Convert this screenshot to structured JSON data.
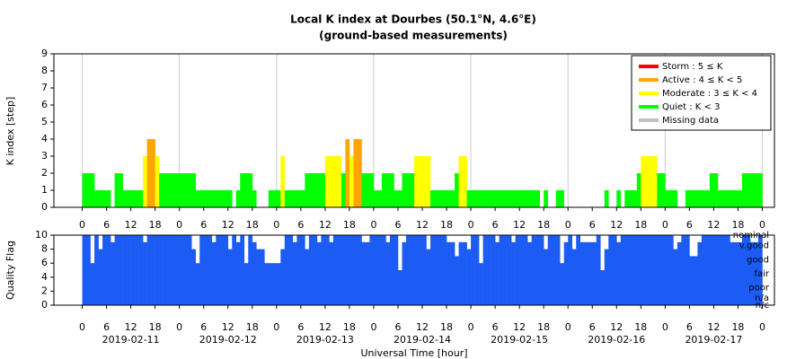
{
  "chart_data": [
    {
      "type": "bar",
      "title": "Local K index at Dourbes (50.1°N, 4.6°E)",
      "subtitle": "(ground-based measurements)",
      "y_label": "K index [step]",
      "xlim": [
        -7,
        171
      ],
      "ylim": [
        0,
        9
      ],
      "yticks": [
        0,
        1,
        2,
        3,
        4,
        5,
        6,
        7,
        8,
        9
      ],
      "xticks": [
        {
          "value": 0,
          "label": "0"
        },
        {
          "value": 6,
          "label": "6"
        },
        {
          "value": 12,
          "label": "12"
        },
        {
          "value": 18,
          "label": "18"
        },
        {
          "value": 24,
          "label": "0"
        },
        {
          "value": 30,
          "label": "6"
        },
        {
          "value": 36,
          "label": "12"
        },
        {
          "value": 42,
          "label": "18"
        },
        {
          "value": 48,
          "label": "0"
        },
        {
          "value": 54,
          "label": "6"
        },
        {
          "value": 60,
          "label": "12"
        },
        {
          "value": 66,
          "label": "18"
        },
        {
          "value": 72,
          "label": "0"
        },
        {
          "value": 78,
          "label": "6"
        },
        {
          "value": 84,
          "label": "12"
        },
        {
          "value": 90,
          "label": "18"
        },
        {
          "value": 96,
          "label": "0"
        },
        {
          "value": 102,
          "label": "6"
        },
        {
          "value": 108,
          "label": "12"
        },
        {
          "value": 114,
          "label": "18"
        },
        {
          "value": 120,
          "label": "0"
        },
        {
          "value": 126,
          "label": "6"
        },
        {
          "value": 132,
          "label": "12"
        },
        {
          "value": 138,
          "label": "18"
        },
        {
          "value": 144,
          "label": "0"
        },
        {
          "value": 150,
          "label": "6"
        },
        {
          "value": 156,
          "label": "12"
        },
        {
          "value": 162,
          "label": "18"
        },
        {
          "value": 168,
          "label": "0"
        }
      ],
      "xgrid": [
        0,
        24,
        48,
        72,
        96,
        120,
        144,
        168
      ],
      "legend_position": "upper right",
      "legend": [
        {
          "name": "Storm : 5 ≤ K",
          "color": "#ff0000",
          "min": 5
        },
        {
          "name": "Active : 4 ≤ K < 5",
          "color": "#ffa500",
          "min": 4
        },
        {
          "name": "Moderate : 3 ≤ K < 4",
          "color": "#ffff00",
          "min": 3
        },
        {
          "name": "Quiet : K < 3",
          "color": "#00ff00",
          "min": 0
        },
        {
          "name": "Missing data",
          "color": "#c0c0c0"
        }
      ],
      "x": [
        1,
        2,
        3,
        4,
        5,
        6,
        7,
        8,
        9,
        10,
        11,
        12,
        13,
        14,
        15,
        16,
        17,
        18,
        19,
        20,
        21,
        22,
        23,
        24,
        25,
        26,
        27,
        28,
        29,
        30,
        31,
        32,
        33,
        34,
        35,
        36,
        37,
        38,
        39,
        40,
        41,
        42,
        43,
        44,
        45,
        46,
        47,
        48,
        49,
        50,
        51,
        52,
        53,
        54,
        55,
        56,
        57,
        58,
        59,
        60,
        61,
        62,
        63,
        64,
        65,
        66,
        67,
        68,
        69,
        70,
        71,
        72,
        73,
        74,
        75,
        76,
        77,
        78,
        79,
        80,
        81,
        82,
        83,
        84,
        85,
        86,
        87,
        88,
        89,
        90,
        91,
        92,
        93,
        94,
        95,
        96,
        97,
        98,
        99,
        100,
        101,
        102,
        103,
        104,
        105,
        106,
        107,
        108,
        109,
        110,
        111,
        112,
        113,
        114,
        115,
        116,
        117,
        118,
        119,
        120,
        121,
        122,
        123,
        124,
        125,
        126,
        127,
        128,
        129,
        130,
        131,
        132,
        133,
        134,
        135,
        136,
        137,
        138,
        139,
        140,
        141,
        142,
        143,
        144,
        145,
        146,
        147,
        148,
        149,
        150,
        151,
        152,
        153,
        154,
        155,
        156,
        157,
        158,
        159,
        160,
        161,
        162,
        163,
        164,
        165,
        166,
        167,
        168
      ],
      "values": [
        2,
        2,
        2,
        1,
        1,
        1,
        1,
        0,
        2,
        2,
        1,
        1,
        1,
        1,
        1,
        3,
        4,
        4,
        3,
        2,
        2,
        2,
        2,
        2,
        2,
        2,
        2,
        2,
        1,
        1,
        1,
        1,
        1,
        1,
        1,
        1,
        1,
        0,
        1,
        2,
        2,
        2,
        1,
        0,
        0,
        0,
        1,
        1,
        1,
        3,
        1,
        1,
        1,
        1,
        1,
        2,
        2,
        2,
        2,
        2,
        3,
        3,
        3,
        3,
        2,
        4,
        3,
        4,
        4,
        2,
        2,
        2,
        1,
        1,
        2,
        2,
        2,
        1,
        1,
        2,
        2,
        2,
        3,
        3,
        3,
        3,
        1,
        1,
        1,
        1,
        1,
        1,
        2,
        3,
        3,
        1,
        1,
        1,
        1,
        1,
        1,
        1,
        1,
        1,
        1,
        1,
        1,
        1,
        1,
        1,
        1,
        1,
        1,
        0,
        1,
        0,
        0,
        1,
        1,
        0,
        0,
        0,
        0,
        0,
        0,
        0,
        0,
        0,
        0,
        1,
        0,
        0,
        1,
        0,
        1,
        1,
        1,
        2,
        3,
        3,
        3,
        3,
        2,
        2,
        1,
        1,
        1,
        0,
        0,
        1,
        1,
        1,
        1,
        1,
        1,
        2,
        2,
        1,
        1,
        1,
        1,
        1,
        1,
        2,
        2,
        2,
        2,
        2
      ]
    },
    {
      "type": "quality",
      "y_label": "Quality Flag",
      "x_label": "Universal Time [hour]",
      "color": "#1c5cf5",
      "xlim": [
        -7,
        171
      ],
      "ylim": [
        0,
        10
      ],
      "yticks": [
        0,
        2,
        4,
        6,
        8,
        10
      ],
      "xticks": [
        {
          "value": 0,
          "label": "0"
        },
        {
          "value": 6,
          "label": "6"
        },
        {
          "value": 12,
          "label": "12"
        },
        {
          "value": 18,
          "label": "18"
        },
        {
          "value": 24,
          "label": "0"
        },
        {
          "value": 30,
          "label": "6"
        },
        {
          "value": 36,
          "label": "12"
        },
        {
          "value": 42,
          "label": "18"
        },
        {
          "value": 48,
          "label": "0"
        },
        {
          "value": 54,
          "label": "6"
        },
        {
          "value": 60,
          "label": "12"
        },
        {
          "value": 66,
          "label": "18"
        },
        {
          "value": 72,
          "label": "0"
        },
        {
          "value": 78,
          "label": "6"
        },
        {
          "value": 84,
          "label": "12"
        },
        {
          "value": 90,
          "label": "18"
        },
        {
          "value": 96,
          "label": "0"
        },
        {
          "value": 102,
          "label": "6"
        },
        {
          "value": 108,
          "label": "12"
        },
        {
          "value": 114,
          "label": "18"
        },
        {
          "value": 120,
          "label": "0"
        },
        {
          "value": 126,
          "label": "6"
        },
        {
          "value": 132,
          "label": "12"
        },
        {
          "value": 138,
          "label": "18"
        },
        {
          "value": 144,
          "label": "0"
        },
        {
          "value": 150,
          "label": "6"
        },
        {
          "value": 156,
          "label": "12"
        },
        {
          "value": 162,
          "label": "18"
        },
        {
          "value": 168,
          "label": "0"
        }
      ],
      "date_labels": [
        {
          "value": 12,
          "label": "2019-02-11"
        },
        {
          "value": 36,
          "label": "2019-02-12"
        },
        {
          "value": 60,
          "label": "2019-02-13"
        },
        {
          "value": 84,
          "label": "2019-02-14"
        },
        {
          "value": 108,
          "label": "2019-02-15"
        },
        {
          "value": 132,
          "label": "2019-02-16"
        },
        {
          "value": 156,
          "label": "2019-02-17"
        }
      ],
      "flag_levels": [
        {
          "value": 10,
          "label": "nominal"
        },
        {
          "value": 8.5,
          "label": "v.good"
        },
        {
          "value": 6.5,
          "label": "good"
        },
        {
          "value": 4.5,
          "label": "fair"
        },
        {
          "value": 2.5,
          "label": "poor"
        },
        {
          "value": 1,
          "label": "n/a"
        },
        {
          "value": 0,
          "label": "n/c"
        }
      ],
      "x": [
        1,
        2,
        3,
        4,
        5,
        6,
        7,
        8,
        9,
        10,
        11,
        12,
        13,
        14,
        15,
        16,
        17,
        18,
        19,
        20,
        21,
        22,
        23,
        24,
        25,
        26,
        27,
        28,
        29,
        30,
        31,
        32,
        33,
        34,
        35,
        36,
        37,
        38,
        39,
        40,
        41,
        42,
        43,
        44,
        45,
        46,
        47,
        48,
        49,
        50,
        51,
        52,
        53,
        54,
        55,
        56,
        57,
        58,
        59,
        60,
        61,
        62,
        63,
        64,
        65,
        66,
        67,
        68,
        69,
        70,
        71,
        72,
        73,
        74,
        75,
        76,
        77,
        78,
        79,
        80,
        81,
        82,
        83,
        84,
        85,
        86,
        87,
        88,
        89,
        90,
        91,
        92,
        93,
        94,
        95,
        96,
        97,
        98,
        99,
        100,
        101,
        102,
        103,
        104,
        105,
        106,
        107,
        108,
        109,
        110,
        111,
        112,
        113,
        114,
        115,
        116,
        117,
        118,
        119,
        120,
        121,
        122,
        123,
        124,
        125,
        126,
        127,
        128,
        129,
        130,
        131,
        132,
        133,
        134,
        135,
        136,
        137,
        138,
        139,
        140,
        141,
        142,
        143,
        144,
        145,
        146,
        147,
        148,
        149,
        150,
        151,
        152,
        153,
        154,
        155,
        156,
        157,
        158,
        159,
        160,
        161,
        162,
        163,
        164,
        165,
        166,
        167,
        168
      ],
      "values": [
        10,
        10,
        6,
        10,
        8,
        10,
        10,
        9,
        10,
        10,
        10,
        10,
        10,
        10,
        10,
        9,
        10,
        10,
        10,
        10,
        10,
        10,
        10,
        10,
        10,
        10,
        10,
        8,
        6,
        10,
        10,
        10,
        9,
        10,
        10,
        10,
        8,
        10,
        9,
        10,
        6,
        10,
        9,
        8,
        8,
        6,
        6,
        6,
        6,
        8,
        10,
        10,
        9,
        10,
        10,
        8,
        10,
        10,
        9,
        10,
        10,
        9,
        10,
        10,
        10,
        10,
        10,
        10,
        10,
        9,
        9,
        10,
        10,
        10,
        10,
        9,
        10,
        10,
        5,
        9,
        10,
        10,
        10,
        10,
        10,
        8,
        10,
        10,
        10,
        10,
        9,
        9,
        7,
        9,
        9,
        8,
        10,
        10,
        6,
        10,
        10,
        10,
        9,
        10,
        10,
        10,
        9,
        10,
        10,
        10,
        9,
        10,
        10,
        10,
        8,
        10,
        10,
        10,
        6,
        9,
        10,
        8,
        10,
        9,
        9,
        9,
        9,
        10,
        5,
        8,
        10,
        10,
        9,
        10,
        10,
        10,
        10,
        10,
        10,
        10,
        10,
        10,
        10,
        10,
        10,
        10,
        8,
        9,
        10,
        10,
        7,
        7,
        9,
        10,
        10,
        10,
        10,
        10,
        10,
        10,
        9,
        9,
        9,
        10,
        10,
        9,
        9,
        10
      ]
    }
  ]
}
